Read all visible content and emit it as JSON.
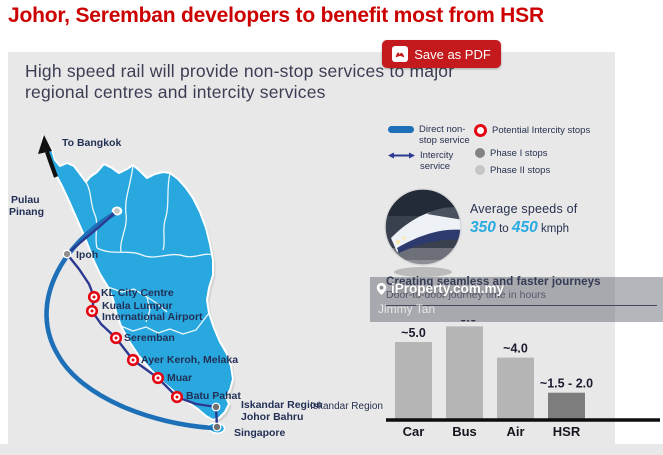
{
  "page": {
    "title": "Johor, Seremban developers to benefit most from HSR",
    "title_color": "#cc0000",
    "save_pdf_button": "Save as PDF"
  },
  "infographic": {
    "heading": {
      "line1": "High speed rail will provide non-stop services to major",
      "line2": "regional centres and intercity services"
    },
    "legend": {
      "direct": {
        "line1": "Direct non-",
        "line2": "stop service",
        "color": "#1d70b7"
      },
      "intercity": {
        "line1": "Intercity",
        "line2": "service",
        "color": "#2b3990"
      },
      "potential": {
        "label": "Potential Intercity stops",
        "color": "#e30613"
      },
      "phase1": {
        "label": "Phase I stops",
        "color": "#828282"
      },
      "phase2": {
        "label": "Phase II stops",
        "color": "#c5c5c5"
      }
    },
    "speed": {
      "intro": "Average speeds of",
      "from": "350",
      "to_word": "to",
      "to_value": "450",
      "unit": "kmph",
      "accent_color": "#29abe2"
    },
    "map": {
      "to_bangkok": "To Bangkok",
      "labels": {
        "pulau_pinang_1": "Pulau",
        "pulau_pinang_2": "Pinang",
        "ipoh": "Ipoh",
        "kl_city_centre": "KL City Centre",
        "klia_1": "Kuala Lumpur",
        "klia_2": "International Airport",
        "seremban": "Seremban",
        "ayer_keroh": "Ayer Keroh, Melaka",
        "muar": "Muar",
        "batu_pahat": "Batu Pahat",
        "iskandar_1": "Iskandar Region",
        "iskandar_2": "Johor Bahru",
        "singapore": "Singapore"
      }
    }
  },
  "watermark": {
    "brand": "iProperty.com.my",
    "author": "Jimmy Tan"
  },
  "chart_data": {
    "type": "bar",
    "title": "Creating seamless and faster journeys",
    "subtitle": "Door-to-door journey time in hours",
    "row_label": "Iskandar Region",
    "categories": [
      "Car",
      "Bus",
      "Air",
      "HSR"
    ],
    "values": [
      5.0,
      6.0,
      4.0,
      1.75
    ],
    "value_labels": [
      "~5.0",
      "~6.0",
      "~4.0",
      "~1.5 - 2.0"
    ],
    "bar_colors": [
      "#b5b5b5",
      "#b5b5b5",
      "#b5b5b5",
      "#7d7d7d"
    ],
    "xlabel": "",
    "ylabel": "",
    "ylim": [
      0,
      6.5
    ],
    "grid": false,
    "legend_position": "none"
  }
}
